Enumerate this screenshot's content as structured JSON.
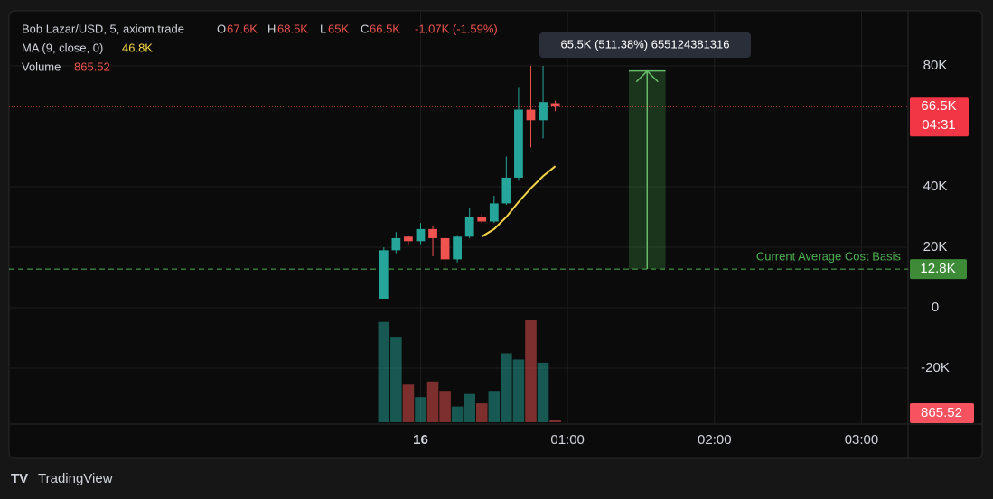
{
  "header": {
    "symbol": "Bob Lazar/USD, 5, axiom.trade",
    "o_label": "O",
    "o": "67.6K",
    "h_label": "H",
    "h": "68.5K",
    "l_label": "L",
    "l": "65K",
    "c_label": "C",
    "c": "66.5K",
    "change": "-1.07K (-1.59%)",
    "ma_label": "MA (9, close, 0)",
    "ma": "46.8K",
    "volume_label": "Volume",
    "volume": "865.52"
  },
  "chart_data": {
    "type": "candlestick",
    "x": [
      -15,
      -10,
      -5,
      0,
      5,
      10,
      15,
      20,
      25,
      30,
      35,
      40,
      45,
      50,
      55
    ],
    "open": [
      3000,
      19000,
      23500,
      22000,
      26000,
      23000,
      16000,
      23500,
      30000,
      28500,
      34500,
      43000,
      65500,
      62000,
      67600
    ],
    "high": [
      20000,
      25000,
      24000,
      28000,
      27000,
      24000,
      24000,
      33000,
      31000,
      37000,
      50000,
      73000,
      80000,
      80000,
      68500
    ],
    "low": [
      3000,
      18000,
      21000,
      21000,
      17000,
      12000,
      15000,
      23000,
      28000,
      28000,
      34000,
      42000,
      53000,
      56000,
      65000
    ],
    "close": [
      19000,
      23000,
      22000,
      26000,
      23000,
      16000,
      23500,
      30000,
      28500,
      34500,
      43000,
      65500,
      62000,
      68000,
      66500
    ],
    "volume": [
      32000,
      27000,
      12000,
      8000,
      13000,
      10000,
      5000,
      9000,
      6000,
      10000,
      22000,
      20000,
      32500,
      19000,
      865.52
    ],
    "ma": [
      null,
      null,
      null,
      null,
      null,
      null,
      null,
      null,
      23500,
      26000,
      30000,
      35000,
      39500,
      43500,
      46800
    ],
    "up_color": "#26a69a",
    "down_color": "#ef5350",
    "ma_color": "#f5d547",
    "ylim": [
      -38500,
      98200
    ],
    "yticks": [
      {
        "value": 80000,
        "label": "80K"
      },
      {
        "value": 40000,
        "label": "40K"
      },
      {
        "value": 20000,
        "label": "20K"
      },
      0,
      {
        "value": -20000,
        "label": "-20K"
      }
    ],
    "xlim": [
      -168,
      199
    ],
    "xticks": [
      {
        "value": 0,
        "label": "16"
      },
      {
        "value": 60,
        "label": "01:00"
      },
      {
        "value": 120,
        "label": "02:00"
      },
      {
        "value": 180,
        "label": "03:00"
      }
    ],
    "grid": true,
    "price_line": {
      "value": 66500,
      "label": "66.5K",
      "countdown": "04:31"
    },
    "cost_basis": {
      "value": 12800,
      "label": "12.8K",
      "text": "Current Average Cost Basis"
    },
    "measure": {
      "from": 12800,
      "to": 78300,
      "x_from": 85,
      "x_to": 100,
      "tooltip": "65.5K (511.38%) 655124381316"
    },
    "last_volume_label": "865.52"
  },
  "footer": {
    "brand": "TradingView"
  }
}
